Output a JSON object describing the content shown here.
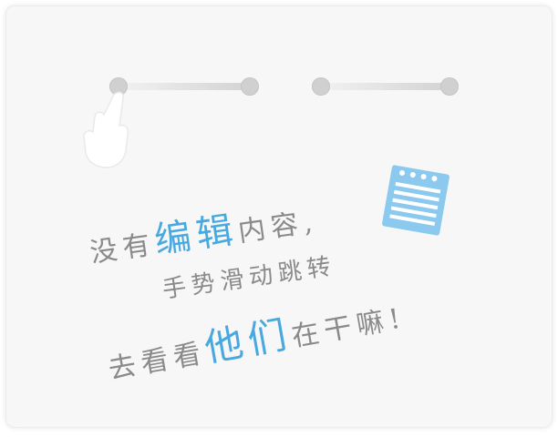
{
  "empty_state": {
    "line1_a": "没有",
    "line1_hl": "编辑",
    "line1_b": "内容,",
    "line2": "手势滑动跳转",
    "line3_a": "去看看",
    "line3_hl": "他们",
    "line3_b": "在干嘛!"
  },
  "icons": {
    "hand": "swipe-hand-icon",
    "note": "notepad-icon"
  },
  "colors": {
    "card_bg": "#f7f7f7",
    "text": "#8a8a8a",
    "highlight": "#47a9e0",
    "notepad": "#8cc9ee"
  }
}
